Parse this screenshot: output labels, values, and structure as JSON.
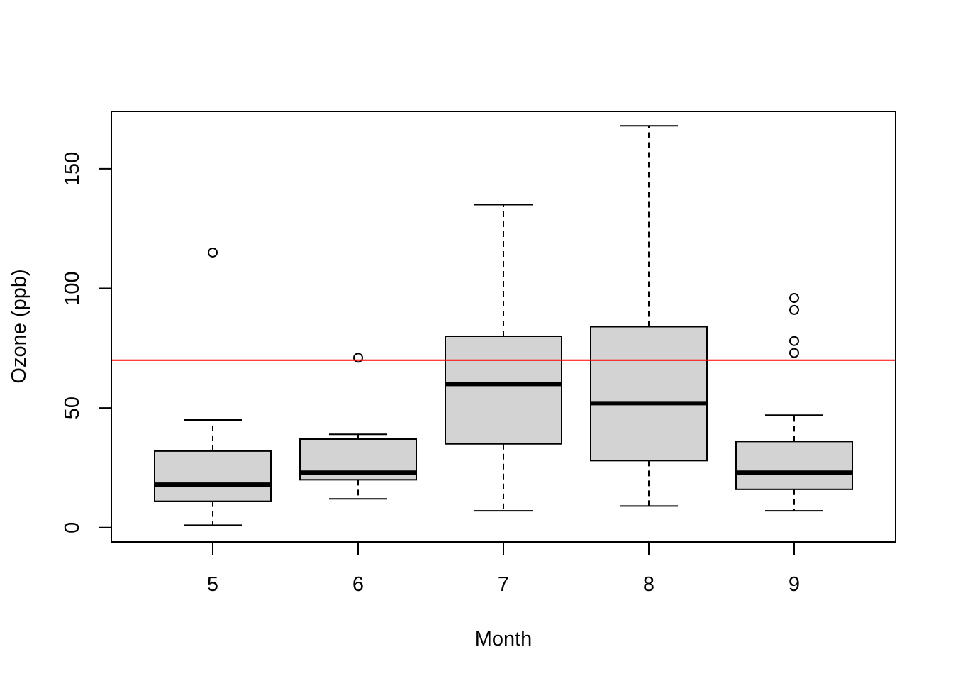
{
  "chart_data": {
    "type": "box",
    "title": "",
    "xlabel": "Month",
    "ylabel": "Ozone (ppb)",
    "ylim": [
      -6,
      174
    ],
    "y_ticks": [
      0,
      50,
      100,
      150
    ],
    "categories": [
      "5",
      "6",
      "7",
      "8",
      "9"
    ],
    "boxes": [
      {
        "category": "5",
        "whisker_low": 1,
        "q1": 11,
        "median": 18,
        "q3": 32,
        "whisker_high": 45,
        "outliers": [
          115
        ]
      },
      {
        "category": "6",
        "whisker_low": 12,
        "q1": 20,
        "median": 23,
        "q3": 37,
        "whisker_high": 39,
        "outliers": [
          71
        ]
      },
      {
        "category": "7",
        "whisker_low": 7,
        "q1": 35,
        "median": 60,
        "q3": 80,
        "whisker_high": 135,
        "outliers": []
      },
      {
        "category": "8",
        "whisker_low": 9,
        "q1": 28,
        "median": 52,
        "q3": 84,
        "whisker_high": 168,
        "outliers": []
      },
      {
        "category": "9",
        "whisker_low": 7,
        "q1": 16,
        "median": 23,
        "q3": 36,
        "whisker_high": 47,
        "outliers": [
          73,
          78,
          91,
          96
        ]
      }
    ],
    "reference_line": {
      "y": 70,
      "color": "#ff0000"
    },
    "box_fill": "#d3d3d3",
    "grid": false,
    "legend": "none"
  }
}
